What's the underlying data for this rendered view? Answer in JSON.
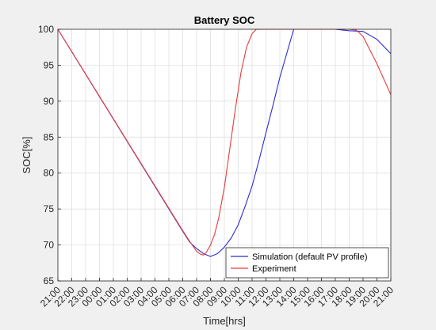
{
  "chart_data": {
    "type": "line",
    "title": "Battery SOC",
    "xlabel": "Time[hrs]",
    "ylabel": "SOC[%]",
    "ylim": [
      65,
      100
    ],
    "yticks": [
      65,
      70,
      75,
      80,
      85,
      90,
      95,
      100
    ],
    "xlim": [
      0,
      24
    ],
    "xtick_labels": [
      "21:00",
      "22:00",
      "23:00",
      "00:00",
      "01:00",
      "02:00",
      "03:00",
      "04:00",
      "05:00",
      "06:00",
      "07:00",
      "08:00",
      "09:00",
      "10:00",
      "11:00",
      "12:00",
      "13:00",
      "14:00",
      "15:00",
      "16:00",
      "17:00",
      "18:00",
      "19:00",
      "20:00",
      "21:00"
    ],
    "grid": true,
    "legend_position": "bottom-right",
    "series": [
      {
        "name": "Simulation (default PV profile)",
        "color": "#2b2bd6",
        "x": [
          0,
          9.0,
          9.5,
          10.0,
          10.5,
          11.0,
          11.5,
          12.0,
          12.5,
          13.0,
          13.5,
          14.0,
          14.5,
          15.0,
          15.5,
          16.0,
          17.0,
          18.0,
          19.0,
          19.5,
          20.0,
          20.5,
          21.0,
          22.0,
          23.0,
          24.0
        ],
        "y": [
          100,
          71.9,
          70.4,
          69.5,
          68.8,
          68.4,
          68.8,
          69.7,
          71.0,
          72.8,
          75.4,
          78.2,
          81.8,
          85.6,
          89.4,
          93.3,
          100,
          100,
          100,
          100,
          100,
          99.9,
          99.8,
          99.7,
          98.6,
          96.6
        ]
      },
      {
        "name": "Experiment",
        "color": "#e83a3a",
        "x": [
          0,
          9.0,
          9.5,
          10.0,
          10.3,
          10.5,
          10.7,
          11.0,
          11.3,
          11.6,
          12.0,
          12.4,
          12.8,
          13.2,
          13.6,
          14.0,
          14.3,
          15.0,
          17.0,
          19.0,
          20.0,
          21.0,
          21.5,
          22.0,
          23.0,
          24.0
        ],
        "y": [
          100,
          72.0,
          70.5,
          69.1,
          68.7,
          68.6,
          69.0,
          70.0,
          71.5,
          73.8,
          78.0,
          83.5,
          89.0,
          94.0,
          97.5,
          99.4,
          100,
          100,
          100,
          100,
          100,
          100,
          99.9,
          99.0,
          95.2,
          90.9
        ]
      }
    ]
  }
}
